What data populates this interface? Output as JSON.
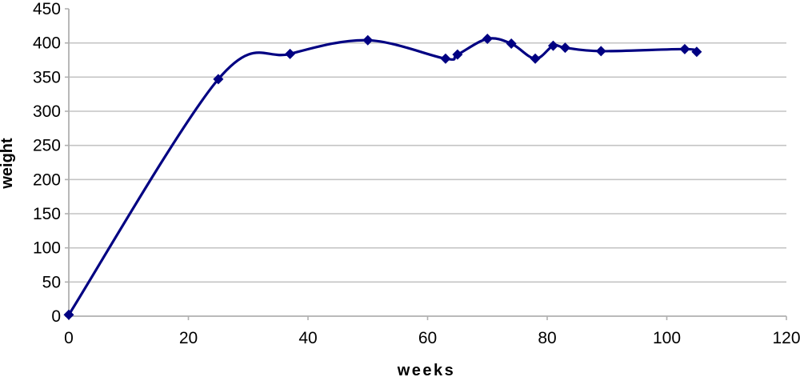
{
  "chart_data": {
    "type": "line",
    "title": "",
    "xlabel": "weeks",
    "ylabel": "weight",
    "xlim": [
      0,
      120
    ],
    "ylim": [
      0,
      450
    ],
    "xticks": [
      0,
      20,
      40,
      60,
      80,
      100,
      120
    ],
    "yticks": [
      0,
      50,
      100,
      150,
      200,
      250,
      300,
      350,
      400,
      450
    ],
    "grid": "horizontal-only",
    "legend": "none",
    "line_style": "smoothed",
    "marker": "diamond",
    "series": [
      {
        "name": "weight",
        "x": [
          0,
          25,
          37,
          50,
          63,
          65,
          70,
          74,
          78,
          81,
          83,
          89,
          103,
          105
        ],
        "y": [
          2,
          347,
          384,
          404,
          377,
          383,
          406,
          399,
          377,
          396,
          393,
          388,
          391,
          387
        ]
      }
    ],
    "colors": {
      "line": "#000082",
      "marker": "#000082",
      "gridline": "#c4c4c4",
      "axis": "#b0b0b0",
      "text": "#000000",
      "background": "#ffffff"
    }
  }
}
